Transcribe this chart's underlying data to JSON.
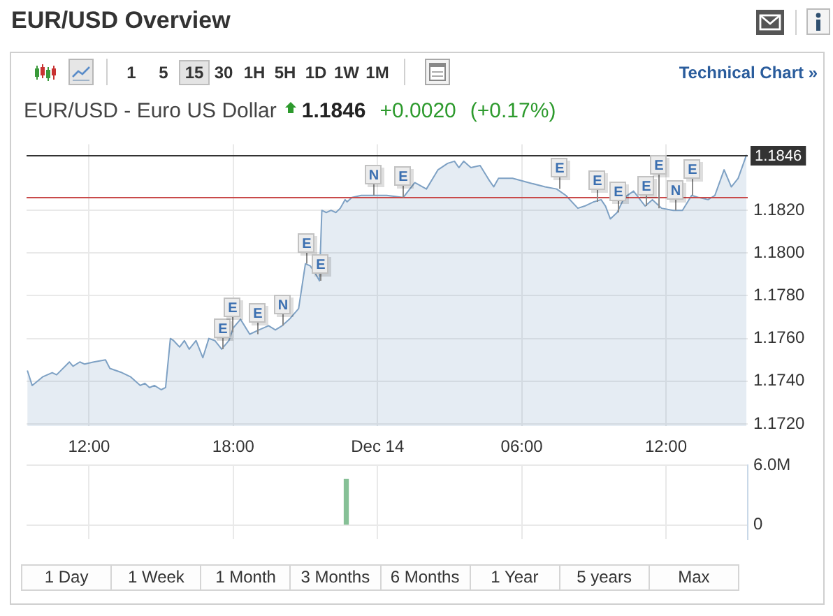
{
  "chart_data": [
    {
      "type": "other",
      "title": "EUR/USD Overview",
      "annotations": [
        "1 5",
        "15",
        "30",
        "1H",
        "5H",
        "1D",
        "1W",
        "1M",
        "Technical Chart »"
      ]
    },
    {
      "type": "area",
      "title": "EUR/USD - Euro US Dollar",
      "color": "#7ea1c4",
      "annotations": [
        "1.1846",
        "+0.0020",
        "(+0.17%)",
        {
          "text": "E",
          "x": "--12-13T17:31",
          "y": 1.1755
        },
        {
          "text": "E",
          "x": "--12-13T17:57",
          "y": 1.1763
        },
        {
          "text": "E",
          "x": "--12-13T18:58",
          "y": 1.1762
        },
        {
          "text": "N",
          "x": "--12-13T20:02",
          "y": 1.1766
        },
        {
          "text": "E",
          "x": "--12-13T21:00",
          "y": 1.1795
        },
        {
          "text": "E",
          "x": "--12-13T21:35",
          "y": 1.1787
        },
        {
          "text": "N",
          "x": "--12-13T23:49",
          "y": 1.1827
        },
        {
          "text": "E",
          "x": "--12-14T01:04",
          "y": 1.1826
        },
        {
          "text": "E",
          "x": "--12-14T07:33",
          "y": 1.183
        },
        {
          "text": "E",
          "x": "--12-14T09:06",
          "y": 1.1824
        },
        {
          "text": "E",
          "x": "--12-14T09:58",
          "y": 1.1819
        },
        {
          "text": "E",
          "x": "--12-14T11:08",
          "y": 1.1822
        },
        {
          "text": "E",
          "x": "--12-14T11:42",
          "y": 1.1821
        },
        {
          "text": "N",
          "x": "--12-14T12:23",
          "y": 1.182
        },
        {
          "text": "E",
          "x": "--12-14T13:04",
          "y": 1.1827
        }
      ],
      "x": [
        "--12-13T09:26",
        "--12-13T09:38",
        "--12-13T10:04",
        "--12-13T10:28",
        "--12-13T10:39",
        "--12-13T11:11",
        "--12-13T11:20",
        "--12-13T11:37",
        "--12-13T11:49",
        "--12-13T12:12",
        "--12-13T12:41",
        "--12-13T12:52",
        "--12-13T13:22",
        "--12-13T13:44",
        "--12-13T14:08",
        "--12-13T14:19",
        "--12-13T14:31",
        "--12-13T14:43",
        "--12-13T15:00",
        "--12-13T15:11",
        "--12-13T15:23",
        "--12-13T15:31",
        "--12-13T15:46",
        "--12-13T15:58",
        "--12-13T16:10",
        "--12-13T16:27",
        "--12-13T16:44",
        "--12-13T16:59",
        "--12-13T17:14",
        "--12-13T17:31",
        "--12-13T17:49",
        "--12-13T18:00",
        "--12-13T18:18",
        "--12-13T18:41",
        "--12-13T19:04",
        "--12-13T19:28",
        "--12-13T19:45",
        "--12-13T20:02",
        "--12-13T20:20",
        "--12-13T20:43",
        "--12-13T21:00",
        "--12-13T21:12",
        "--12-13T21:23",
        "--12-13T21:35",
        "--12-13T21:41",
        "--12-13T21:52",
        "--12-13T22:04",
        "--12-13T22:16",
        "--12-13T22:27",
        "--12-13T22:39",
        "--12-13T22:44",
        "--12-13T22:56",
        "--12-13T23:19",
        "--12-13T23:49",
        "--12-14T00:23",
        "--12-14T01:04",
        "--12-14T01:33",
        "--12-14T02:02",
        "--12-14T02:31",
        "--12-14T02:55",
        "--12-14T03:12",
        "--12-14T03:23",
        "--12-14T03:35",
        "--12-14T03:53",
        "--12-14T04:16",
        "--12-14T04:39",
        "--12-14T04:50",
        "--12-14T05:02",
        "--12-14T05:37",
        "--12-14T06:17",
        "--12-14T06:58",
        "--12-14T07:27",
        "--12-14T07:50",
        "--12-14T08:20",
        "--12-14T08:37",
        "--12-14T09:00",
        "--12-14T09:18",
        "--12-14T09:29",
        "--12-14T09:41",
        "--12-14T09:58",
        "--12-14T10:16",
        "--12-14T10:39",
        "--12-14T11:08",
        "--12-14T11:26",
        "--12-14T11:49",
        "--12-14T12:18",
        "--12-14T12:41",
        "--12-14T13:04",
        "--12-14T13:22",
        "--12-14T13:45",
        "--12-14T14:02",
        "--12-14T14:25",
        "--12-14T14:43",
        "--12-14T15:00",
        "--12-14T15:21"
      ],
      "values": [
        1.1745,
        1.1738,
        1.1742,
        1.1744,
        1.1743,
        1.1749,
        1.1747,
        1.1749,
        1.1748,
        1.1749,
        1.175,
        1.1746,
        1.1744,
        1.1742,
        1.1738,
        1.1739,
        1.1737,
        1.1738,
        1.1736,
        1.1737,
        1.176,
        1.1759,
        1.1756,
        1.1759,
        1.1755,
        1.1759,
        1.1751,
        1.176,
        1.1759,
        1.1755,
        1.1759,
        1.1765,
        1.1769,
        1.1762,
        1.1764,
        1.1766,
        1.1764,
        1.1766,
        1.1769,
        1.1774,
        1.1795,
        1.1794,
        1.1791,
        1.1787,
        1.182,
        1.1819,
        1.182,
        1.1819,
        1.1821,
        1.1825,
        1.1824,
        1.1826,
        1.1827,
        1.1827,
        1.1827,
        1.1826,
        1.1833,
        1.183,
        1.1839,
        1.1842,
        1.1843,
        1.184,
        1.1843,
        1.184,
        1.1841,
        1.1834,
        1.1831,
        1.1835,
        1.1835,
        1.1833,
        1.1831,
        1.183,
        1.1827,
        1.1821,
        1.1822,
        1.1824,
        1.1825,
        1.1822,
        1.1816,
        1.1819,
        1.1826,
        1.1829,
        1.1822,
        1.1825,
        1.1821,
        1.182,
        1.182,
        1.1827,
        1.1826,
        1.1825,
        1.1827,
        1.1839,
        1.1831,
        1.1835,
        1.1846
      ],
      "xlim": [
        "--12-13T09:24",
        "--12-14T15:24"
      ],
      "xticks": [
        {
          "value": "--12-13T12:00",
          "label": "12:00"
        },
        {
          "value": "--12-13T18:00",
          "label": "18:00"
        },
        {
          "value": "--12-14",
          "label": "Dec 14"
        },
        {
          "value": "--12-14T06:00",
          "label": "06:00"
        },
        {
          "value": "--12-14T12:00",
          "label": "12:00"
        }
      ],
      "ylim": [
        1.1719,
        1.1851
      ],
      "yticks": [
        {
          "value": 1.172,
          "label": "1.1720"
        },
        {
          "value": 1.174,
          "label": "1.1740"
        },
        {
          "value": 1.176,
          "label": "1.1760"
        },
        {
          "value": 1.178,
          "label": "1.1780"
        },
        {
          "value": 1.18,
          "label": "1.1800"
        },
        {
          "value": 1.182,
          "label": "1.1820"
        }
      ],
      "ref_lines": [
        {
          "axis": "y",
          "value": 1.1846,
          "label": "1.1846",
          "color": "#333333"
        },
        {
          "axis": "y",
          "value": 1.1826,
          "color": "#c94a4a"
        }
      ],
      "grid": true
    },
    {
      "type": "bar",
      "x": [
        "--12-13T22:42"
      ],
      "values": [
        4600000
      ],
      "color": "#86c096",
      "xlim": [
        "--12-13T09:24",
        "--12-14T15:24"
      ],
      "xticks": [
        {
          "value": "--12-13T12:00",
          "label": null
        },
        {
          "value": "--12-13T18:00",
          "label": null
        },
        {
          "value": "--12-14",
          "label": null
        },
        {
          "value": "--12-14T06:00",
          "label": null
        },
        {
          "value": "--12-14T12:00",
          "label": null
        }
      ],
      "ylim": [
        -1400000,
        6000000
      ],
      "yticks": [
        0,
        {
          "value": 6000000,
          "label": "6.0M"
        }
      ],
      "grid": true,
      "tick_labels": "y"
    },
    {
      "type": "other",
      "annotations": [
        "1 Day",
        "1 Week",
        "1 Month",
        "3 Months",
        "6 Months",
        "1 Year",
        "5 years",
        "Max"
      ]
    }
  ]
}
